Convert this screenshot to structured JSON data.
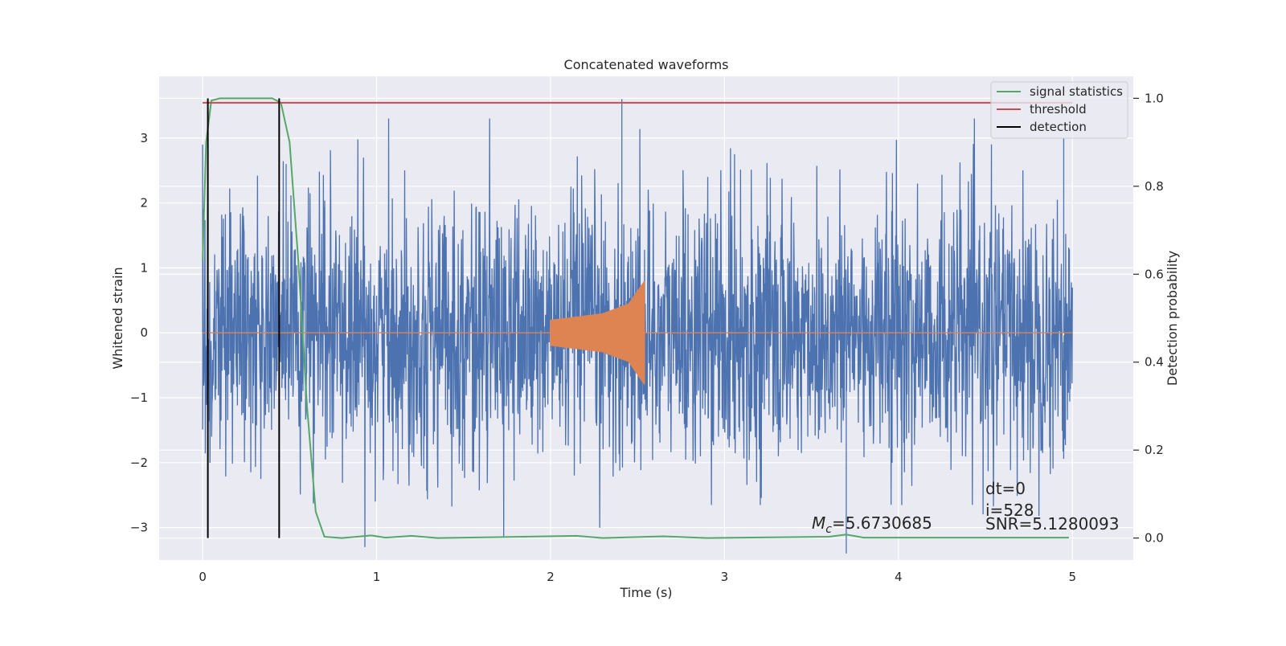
{
  "chart_data": {
    "type": "line",
    "title": "Concatenated waveforms",
    "xlabel": "Time (s)",
    "ylabel": "Whitened strain",
    "y2label": "Detection probability",
    "xlim": [
      -0.25,
      5.35
    ],
    "ylim": [
      -3.5,
      3.95
    ],
    "y2lim": [
      -0.05,
      1.05
    ],
    "x_ticks": [
      "0",
      "1",
      "2",
      "3",
      "4",
      "5"
    ],
    "y_ticks": [
      "−3",
      "−2",
      "−1",
      "0",
      "1",
      "2",
      "3"
    ],
    "y2_ticks": [
      "0.0",
      "0.2",
      "0.4",
      "0.6",
      "0.8",
      "1.0"
    ],
    "grid": true,
    "legend_position": "top-right",
    "colors": {
      "background": "#eaeaf2",
      "noise": "#4c72b0",
      "signal": "#dd8452",
      "signal_statistics": "#55a868",
      "threshold": "#c44e52",
      "detection": "#000000"
    },
    "series": [
      {
        "name": "",
        "axis": "left",
        "kind": "whitened strain noise",
        "x_range": [
          0,
          5
        ],
        "typical_amplitude": 1.0,
        "peak_values": [
          {
            "x": 0.0,
            "y": 2.9
          },
          {
            "x": 0.48,
            "y": 2.6
          },
          {
            "x": 2.41,
            "y": 3.6
          },
          {
            "x": 3.7,
            "y": -3.4
          },
          {
            "x": 4.95,
            "y": 3.0
          }
        ]
      },
      {
        "name": "",
        "axis": "left",
        "kind": "injected chirp",
        "x_range": [
          2.0,
          2.55
        ],
        "envelope": [
          {
            "x": 2.0,
            "y": 0.2
          },
          {
            "x": 2.3,
            "y": 0.3
          },
          {
            "x": 2.45,
            "y": 0.45
          },
          {
            "x": 2.54,
            "y": 0.8
          }
        ],
        "baseline": 0
      },
      {
        "name": "signal statistics",
        "axis": "right",
        "points": [
          {
            "x": 0.0,
            "y": 0.63
          },
          {
            "x": 0.02,
            "y": 0.9
          },
          {
            "x": 0.05,
            "y": 0.995
          },
          {
            "x": 0.1,
            "y": 1.0
          },
          {
            "x": 0.4,
            "y": 1.0
          },
          {
            "x": 0.45,
            "y": 0.99
          },
          {
            "x": 0.5,
            "y": 0.9
          },
          {
            "x": 0.55,
            "y": 0.63
          },
          {
            "x": 0.6,
            "y": 0.3
          },
          {
            "x": 0.65,
            "y": 0.06
          },
          {
            "x": 0.7,
            "y": 0.003
          },
          {
            "x": 0.8,
            "y": 0.0
          },
          {
            "x": 0.97,
            "y": 0.006
          },
          {
            "x": 1.05,
            "y": 0.001
          },
          {
            "x": 1.2,
            "y": 0.005
          },
          {
            "x": 1.35,
            "y": 0.0
          },
          {
            "x": 2.15,
            "y": 0.005
          },
          {
            "x": 2.3,
            "y": 0.0
          },
          {
            "x": 2.65,
            "y": 0.004
          },
          {
            "x": 2.9,
            "y": 0.0
          },
          {
            "x": 3.6,
            "y": 0.003
          },
          {
            "x": 3.7,
            "y": 0.008
          },
          {
            "x": 3.8,
            "y": 0.001
          },
          {
            "x": 4.98,
            "y": 0.001
          }
        ]
      },
      {
        "name": "threshold",
        "axis": "right",
        "points": [
          {
            "x": 0.0,
            "y": 0.99
          },
          {
            "x": 5.0,
            "y": 0.99
          }
        ]
      },
      {
        "name": "detection",
        "axis": "right",
        "vertical_lines": [
          0.03,
          0.44
        ],
        "y_range": [
          0.0,
          1.0
        ]
      }
    ],
    "annotations": {
      "mc_symbol": "M",
      "mc_sub": "c",
      "mc_value": "=5.6730685",
      "dt": "dt=0",
      "i": "i=528",
      "snr": "SNR=5.1280093"
    }
  }
}
